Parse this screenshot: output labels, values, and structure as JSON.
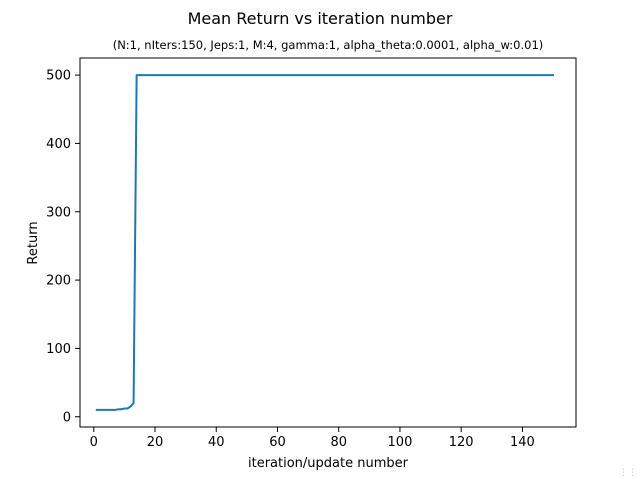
{
  "chart_data": {
    "type": "line",
    "title": "Mean Return vs iteration number",
    "subtitle": "(N:1, nIters:150, Jeps:1, M:4, gamma:1, alpha_theta:0.0001, alpha_w:0.01)",
    "xlabel": "iteration/update number",
    "ylabel": "Return",
    "xlim": [
      -4.5,
      157.5
    ],
    "ylim": [
      -15,
      525
    ],
    "xticks": [
      0,
      20,
      40,
      60,
      80,
      100,
      120,
      140
    ],
    "yticks": [
      0,
      100,
      200,
      300,
      400,
      500
    ],
    "grid": false,
    "legend": "none",
    "series": [
      {
        "color": "#1f77b4",
        "x": [
          1,
          2,
          3,
          4,
          5,
          6,
          7,
          8,
          9,
          10,
          11,
          12,
          13,
          14,
          15,
          150
        ],
        "y": [
          10,
          10,
          10,
          10,
          10,
          10,
          10,
          11,
          11,
          12,
          12,
          15,
          20,
          500,
          500,
          500
        ]
      }
    ]
  }
}
